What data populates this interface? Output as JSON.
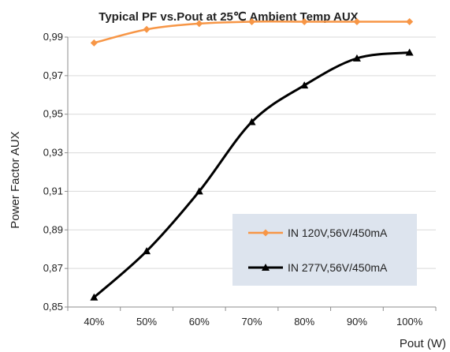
{
  "chart_data": {
    "type": "line",
    "title": "Typical PF vs.Pout at 25℃ Ambient Temp  AUX",
    "xlabel": "Pout (W)",
    "ylabel": "Power Factor AUX",
    "categories": [
      "40%",
      "50%",
      "60%",
      "70%",
      "80%",
      "90%",
      "100%"
    ],
    "y_ticks": [
      "0,85",
      "0,87",
      "0,89",
      "0,91",
      "0,93",
      "0,95",
      "0,97",
      "0,99"
    ],
    "ylim": [
      0.85,
      1.0
    ],
    "grid": true,
    "legend_position": "bottom-right",
    "series": [
      {
        "name": "IN 120V,56V/450mA",
        "color": "#F79646",
        "marker": "diamond",
        "values": [
          0.987,
          0.994,
          0.997,
          0.998,
          0.998,
          0.998,
          0.998
        ]
      },
      {
        "name": "IN 277V,56V/450mA",
        "color": "#000000",
        "marker": "triangle",
        "values": [
          0.855,
          0.879,
          0.91,
          0.946,
          0.965,
          0.979,
          0.982
        ]
      }
    ]
  }
}
